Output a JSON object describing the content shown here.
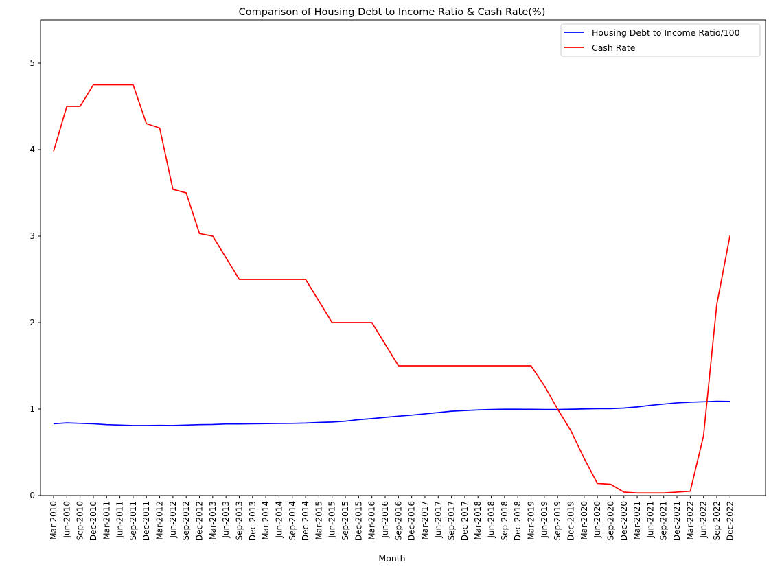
{
  "chart_data": {
    "type": "line",
    "title": "Comparison of Housing Debt to Income Ratio & Cash Rate(%)",
    "xlabel": "Month",
    "ylabel": "",
    "ylim": [
      0,
      5.5
    ],
    "yticks": [
      0,
      1,
      2,
      3,
      4,
      5
    ],
    "legend_position": "top-right",
    "grid": false,
    "categories": [
      "Mar-2010",
      "Jun-2010",
      "Sep-2010",
      "Dec-2010",
      "Mar-2011",
      "Jun-2011",
      "Sep-2011",
      "Dec-2011",
      "Mar-2012",
      "Jun-2012",
      "Sep-2012",
      "Dec-2012",
      "Mar-2013",
      "Jun-2013",
      "Sep-2013",
      "Dec-2013",
      "Mar-2014",
      "Jun-2014",
      "Sep-2014",
      "Dec-2014",
      "Mar-2015",
      "Jun-2015",
      "Sep-2015",
      "Dec-2015",
      "Mar-2016",
      "Jun-2016",
      "Sep-2016",
      "Dec-2016",
      "Mar-2017",
      "Jun-2017",
      "Sep-2017",
      "Dec-2017",
      "Mar-2018",
      "Jun-2018",
      "Sep-2018",
      "Dec-2018",
      "Mar-2019",
      "Jun-2019",
      "Sep-2019",
      "Dec-2019",
      "Mar-2020",
      "Jun-2020",
      "Sep-2020",
      "Dec-2020",
      "Mar-2021",
      "Jun-2021",
      "Sep-2021",
      "Dec-2021",
      "Mar-2022",
      "Jun-2022",
      "Sep-2022",
      "Dec-2022"
    ],
    "series": [
      {
        "name": "Housing Debt to Income Ratio/100",
        "color": "#0000ff",
        "values": [
          0.83,
          0.84,
          0.835,
          0.83,
          0.82,
          0.815,
          0.81,
          0.81,
          0.812,
          0.81,
          0.815,
          0.82,
          0.822,
          0.828,
          0.828,
          0.83,
          0.832,
          0.834,
          0.835,
          0.838,
          0.845,
          0.85,
          0.86,
          0.878,
          0.89,
          0.905,
          0.918,
          0.93,
          0.945,
          0.96,
          0.975,
          0.983,
          0.99,
          0.995,
          0.998,
          0.998,
          0.997,
          0.995,
          0.995,
          0.998,
          1.002,
          1.005,
          1.005,
          1.012,
          1.025,
          1.043,
          1.058,
          1.072,
          1.08,
          1.085,
          1.09,
          1.088
        ]
      },
      {
        "name": "Cash Rate",
        "color": "#ff0000",
        "values": [
          3.98,
          4.5,
          4.5,
          4.75,
          4.75,
          4.75,
          4.75,
          4.3,
          4.25,
          3.54,
          3.5,
          3.03,
          3.0,
          2.75,
          2.5,
          2.5,
          2.5,
          2.5,
          2.5,
          2.5,
          2.25,
          2.0,
          2.0,
          2.0,
          2.0,
          1.75,
          1.5,
          1.5,
          1.5,
          1.5,
          1.5,
          1.5,
          1.5,
          1.5,
          1.5,
          1.5,
          1.5,
          1.27,
          1.0,
          0.75,
          0.43,
          0.14,
          0.13,
          0.04,
          0.03,
          0.03,
          0.03,
          0.04,
          0.05,
          0.69,
          2.21,
          3.01
        ]
      }
    ]
  }
}
